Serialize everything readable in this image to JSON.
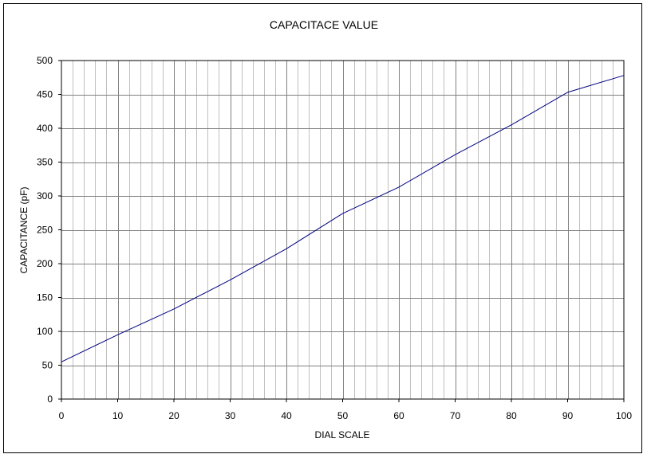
{
  "chart_data": {
    "type": "line",
    "title": "CAPACITACE VALUE",
    "xlabel": "DIAL SCALE",
    "ylabel": "CAPACITANCE (pF)",
    "xlim": [
      0,
      100
    ],
    "ylim": [
      0,
      500
    ],
    "x_ticks": [
      0,
      10,
      20,
      30,
      40,
      50,
      60,
      70,
      80,
      90,
      100
    ],
    "y_ticks": [
      0,
      50,
      100,
      150,
      200,
      250,
      300,
      350,
      400,
      450,
      500
    ],
    "x_minor_step": 2,
    "grid": true,
    "legend": "none",
    "series": [
      {
        "x": [
          0,
          10,
          20,
          30,
          40,
          50,
          60,
          70,
          80,
          90,
          100
        ],
        "values": [
          55,
          95,
          133,
          176,
          222,
          274,
          313,
          361,
          405,
          453,
          478
        ],
        "color": "#000080"
      }
    ],
    "colors": {
      "plot_background": "#ffffff",
      "major_grid": "#808080",
      "minor_grid": "#c0c0c0",
      "axis": "#000000",
      "line": "#000080"
    }
  }
}
